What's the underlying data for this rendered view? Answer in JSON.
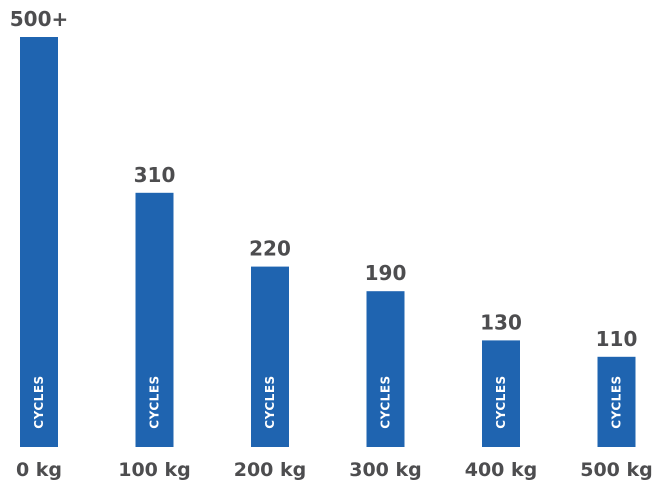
{
  "chart_data": {
    "type": "bar",
    "categories": [
      "0 kg",
      "100 kg",
      "200 kg",
      "300 kg",
      "400 kg",
      "500 kg"
    ],
    "values": [
      500,
      310,
      220,
      190,
      130,
      110
    ],
    "value_labels": [
      "500+",
      "310",
      "220",
      "190",
      "130",
      "110"
    ],
    "bar_text": "CYCLES",
    "bar_color": "#1f64b0",
    "text_color": "#4d4d4f",
    "ylim": [
      0,
      500
    ],
    "grid": false,
    "title": "",
    "xlabel": "",
    "ylabel": ""
  }
}
